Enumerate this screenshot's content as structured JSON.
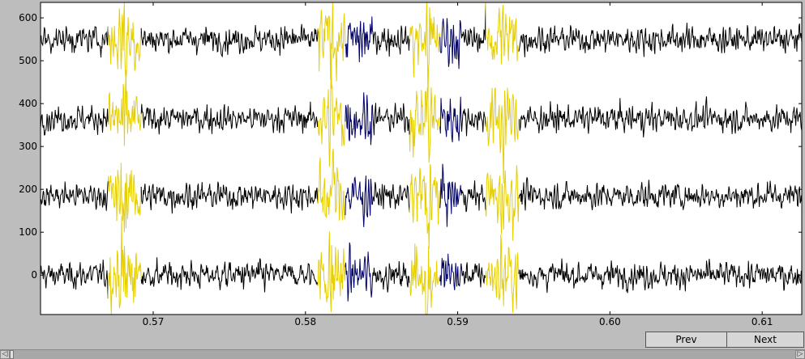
{
  "chart_data": {
    "type": "line",
    "title": "",
    "xlabel": "",
    "ylabel": "",
    "xlim": [
      0.5626,
      0.6126
    ],
    "ylim": [
      -92,
      636
    ],
    "x_ticks": [
      0.57,
      0.58,
      0.59,
      0.6,
      0.61
    ],
    "x_tick_labels": [
      "0.57",
      "0.58",
      "0.59",
      "0.60",
      "0.61"
    ],
    "y_ticks": [
      0,
      100,
      200,
      300,
      400,
      500,
      600
    ],
    "y_tick_labels": [
      "0",
      "100",
      "200",
      "300",
      "400",
      "500",
      "600"
    ],
    "grid": false,
    "channel_offsets": [
      0,
      185,
      365,
      550
    ],
    "series": [
      {
        "color": "#000000",
        "x_ranges": [
          [
            0.5626,
            0.6126
          ]
        ]
      },
      {
        "color": "#e6cf00",
        "x_ranges": [
          [
            0.567,
            0.5692
          ],
          [
            0.5808,
            0.5826
          ],
          [
            0.5868,
            0.5892
          ],
          [
            0.5918,
            0.594
          ]
        ]
      },
      {
        "color": "#000066",
        "x_ranges": [
          [
            0.5826,
            0.5844
          ],
          [
            0.5888,
            0.5902
          ]
        ]
      }
    ]
  },
  "controls": {
    "prev_label": "Prev",
    "next_label": "Next"
  },
  "scrollbar": {
    "left_arrow": "◁",
    "right_arrow": "▷"
  }
}
